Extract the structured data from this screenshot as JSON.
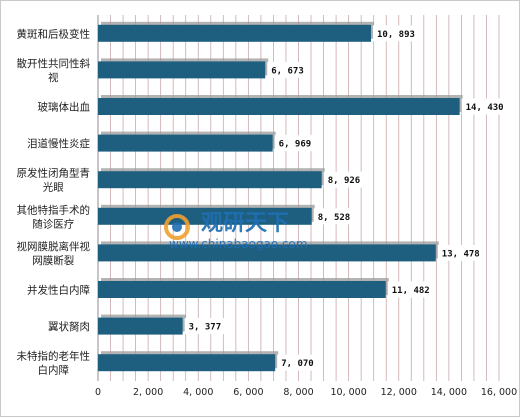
{
  "chart_data": {
    "type": "bar",
    "orientation": "horizontal",
    "categories": [
      "黄斑和后极变性",
      "散开性共同性斜视",
      "玻璃体出血",
      "泪道慢性炎症",
      "原发性闭角型青光眼",
      "其他特指手术的随诊医疗",
      "视网膜脱离伴视网膜断裂",
      "并发性白内障",
      "翼状胬肉",
      "未特指的老年性白内障"
    ],
    "category_lines": [
      [
        "黄斑和后极变性"
      ],
      [
        "散开性共同性斜",
        "视"
      ],
      [
        "玻璃体出血"
      ],
      [
        "泪道慢性炎症"
      ],
      [
        "原发性闭角型青",
        "光眼"
      ],
      [
        "其他特指手术的",
        "随诊医疗"
      ],
      [
        "视网膜脱离伴视",
        "网膜断裂"
      ],
      [
        "并发性白内障"
      ],
      [
        "翼状胬肉"
      ],
      [
        "未特指的老年性",
        "白内障"
      ]
    ],
    "values": [
      10893,
      6673,
      14430,
      6969,
      8926,
      8528,
      13478,
      11482,
      3377,
      7070
    ],
    "value_labels": [
      "10, 893",
      "6, 673",
      "14, 430",
      "6, 969",
      "8, 926",
      "8, 528",
      "13, 478",
      "11, 482",
      "3, 377",
      "7, 070"
    ],
    "xticks": [
      0,
      2000,
      4000,
      6000,
      8000,
      10000,
      12000,
      14000,
      16000
    ],
    "xtick_labels": [
      "0",
      "2, 000",
      "4, 000",
      "6, 000",
      "8, 000",
      "10, 000",
      "12, 000",
      "14, 000",
      "16, 000"
    ],
    "xlim": [
      0,
      16000
    ],
    "grid": "vertical",
    "bar_color": "#1e5f80",
    "grid_color": "#c9a9ab",
    "title": "",
    "xlabel": "",
    "ylabel": ""
  },
  "watermark": {
    "title": "观研天下",
    "url": "www.chinabaogao.com"
  }
}
